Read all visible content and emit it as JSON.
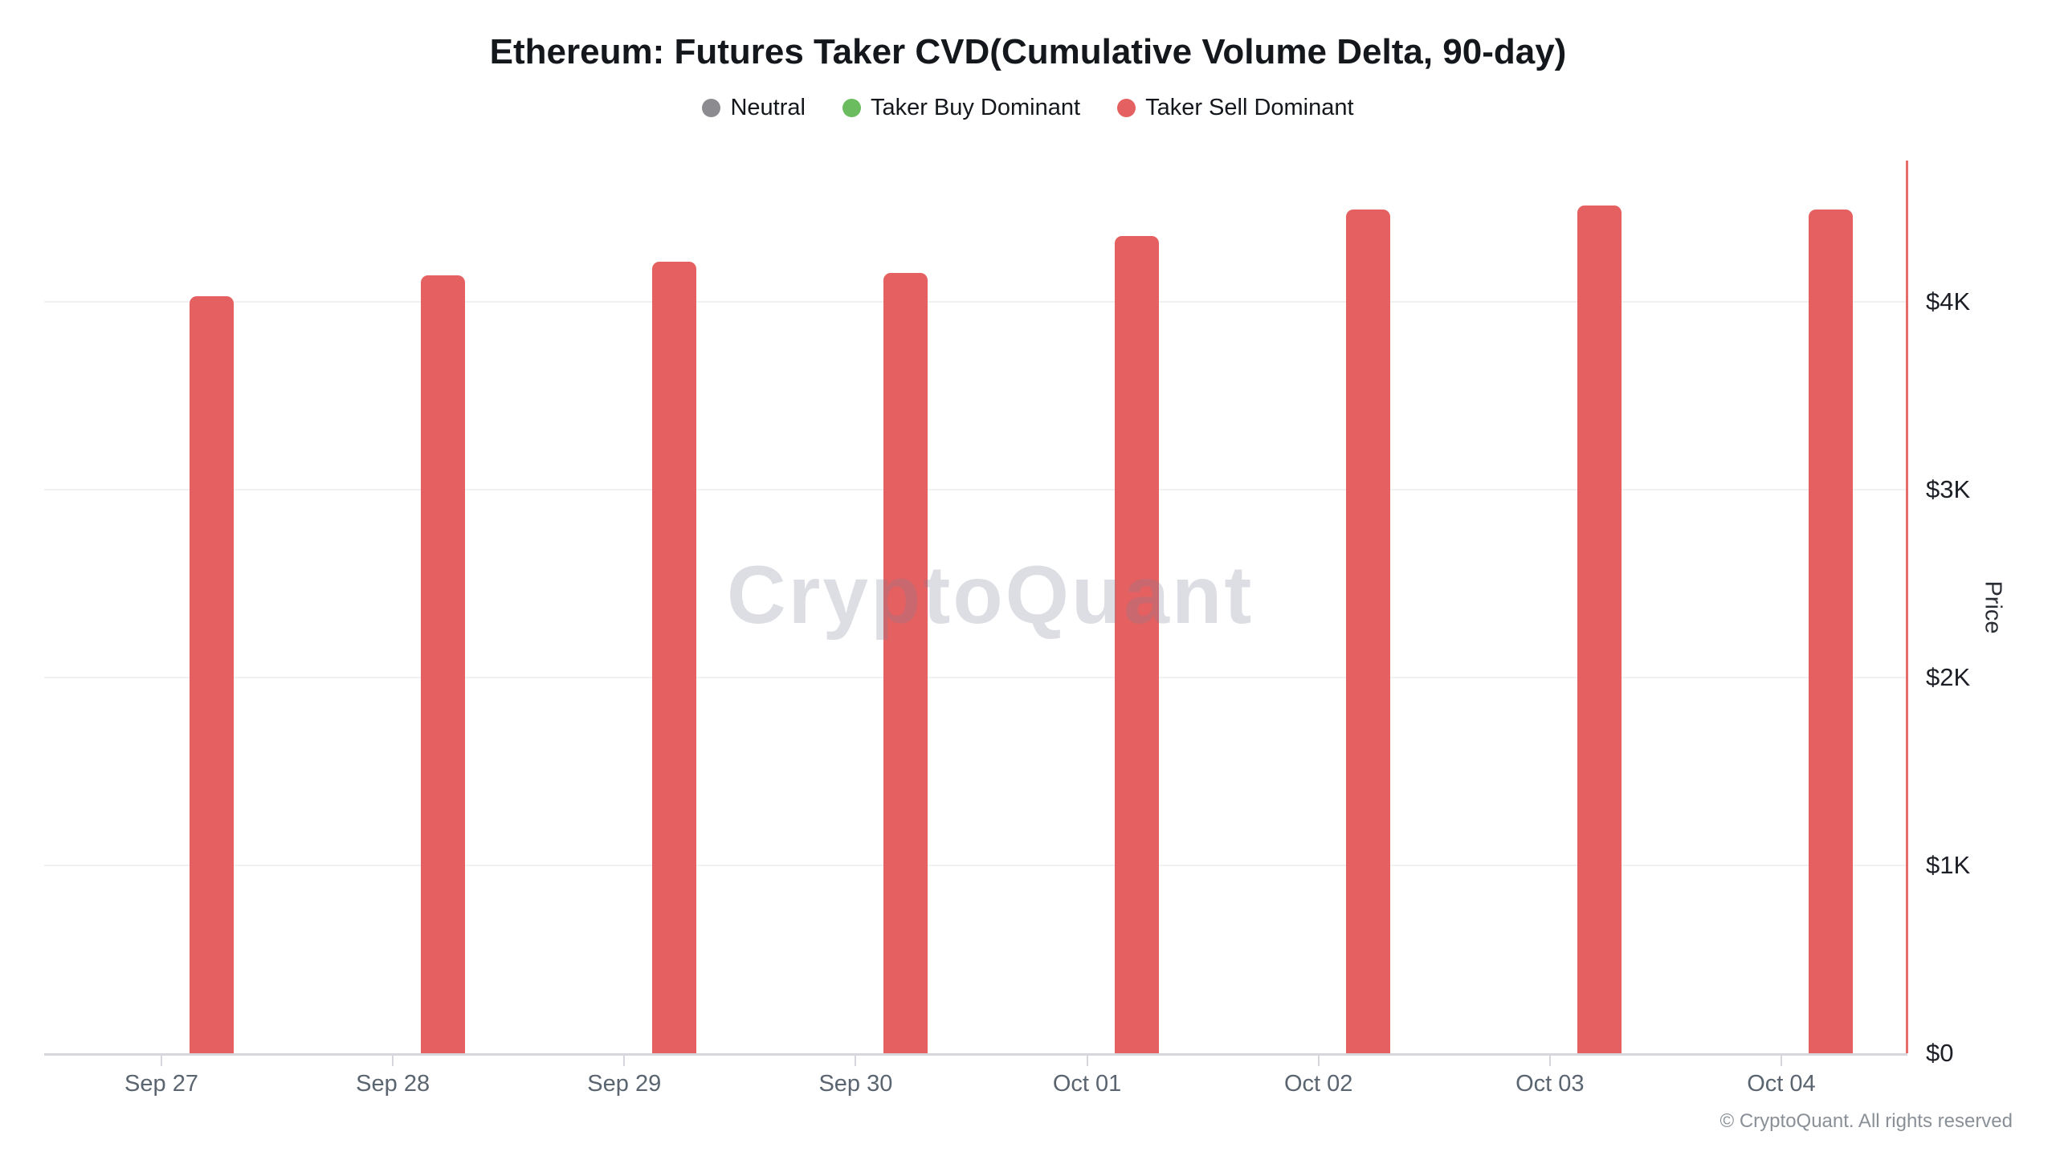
{
  "title": "Ethereum: Futures Taker CVD(Cumulative Volume Delta, 90-day)",
  "legend": {
    "items": [
      {
        "label": "Neutral",
        "color": "#8b8b90"
      },
      {
        "label": "Taker Buy Dominant",
        "color": "#6abc5f"
      },
      {
        "label": "Taker Sell Dominant",
        "color": "#e56060"
      }
    ]
  },
  "watermark": "CryptoQuant",
  "footer": {
    "copyright": "© CryptoQuant. All rights reserved"
  },
  "colors": {
    "bar_red": "#e56060",
    "axis_line_red": "#e86b6b",
    "gridline": "#f1f1f4",
    "baseline": "#d6d6dc"
  },
  "chart_data": {
    "type": "bar",
    "title": "Ethereum: Futures Taker CVD(Cumulative Volume Delta, 90-day)",
    "categories": [
      "Sep 27",
      "Sep 28",
      "Sep 29",
      "Sep 30",
      "Oct 01",
      "Oct 02",
      "Oct 03",
      "Oct 04"
    ],
    "series": [
      {
        "name": "Taker Sell Dominant",
        "status": "sell",
        "color": "#e56060",
        "values": [
          4030,
          4140,
          4210,
          4150,
          4350,
          4490,
          4510,
          4490
        ]
      }
    ],
    "xlabel": "",
    "ylabel": "Price",
    "ylim": [
      0,
      4750
    ],
    "yticks": [
      {
        "value": 0,
        "label": "$0"
      },
      {
        "value": 1000,
        "label": "$1K"
      },
      {
        "value": 2000,
        "label": "$2K"
      },
      {
        "value": 3000,
        "label": "$3K"
      },
      {
        "value": 4000,
        "label": "$4K"
      }
    ],
    "grid": true,
    "legend_position": "top",
    "bar_color": "#e56060"
  }
}
